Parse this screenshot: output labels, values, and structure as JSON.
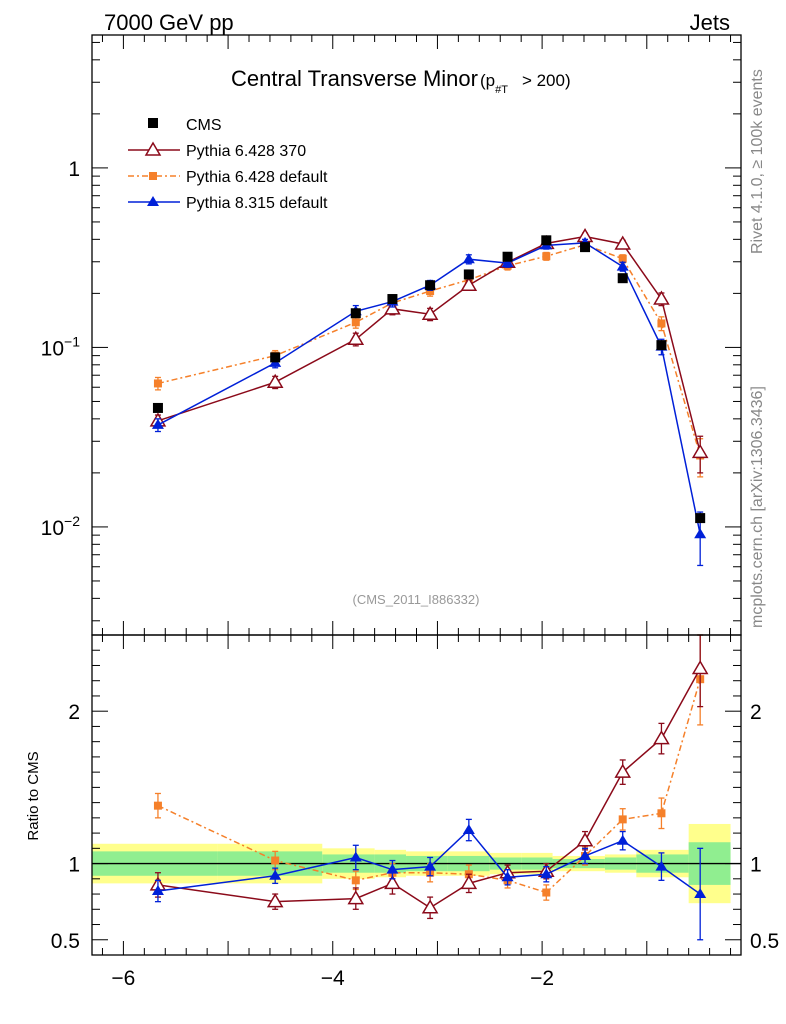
{
  "header": {
    "energy_label": "7000 GeV pp",
    "category_label": "Jets"
  },
  "side_labels": {
    "rivet": "Rivet 4.1.0, ≥ 100k events",
    "source": "mcplots.cern.ch [arXiv:1306.3436]"
  },
  "colors": {
    "cms": "#000000",
    "pythia6_370": "#8b0a1a",
    "pythia6_default": "#f5802a",
    "pythia8_default": "#0020d8",
    "band_inner": "#90ee90",
    "band_outer": "#ffff8c"
  },
  "chart_data": [
    {
      "type": "line",
      "panel": "main",
      "title": "Central Transverse Minor",
      "title_suffix": "(p",
      "title_sub": "#T",
      "title_cut": "> 200)",
      "xlabel": "",
      "ylabel": "",
      "yscale": "log",
      "xlim": [
        -6.3,
        -0.1
      ],
      "ylim": [
        0.0025,
        5.5
      ],
      "yticks": [
        {
          "value": 0.01,
          "base": "10",
          "exp": "−2"
        },
        {
          "value": 0.1,
          "base": "10",
          "exp": "−1"
        },
        {
          "value": 1,
          "base": "1",
          "exp": ""
        }
      ],
      "watermark": "(CMS_2011_I886332)",
      "legend_position": "top-left",
      "legend": [
        {
          "key": "cms",
          "label": "CMS"
        },
        {
          "key": "p6_370",
          "label": "Pythia 6.428 370"
        },
        {
          "key": "p6_def",
          "label": "Pythia 6.428 default"
        },
        {
          "key": "p8_def",
          "label": "Pythia 8.315 default"
        }
      ],
      "bin_edges": [
        -6.3,
        -5.1,
        -4.1,
        -3.6,
        -3.3,
        -2.9,
        -2.5,
        -2.2,
        -1.9,
        -1.4,
        -1.1,
        -0.6,
        -0.2
      ],
      "x": [
        -5.67,
        -4.55,
        -3.78,
        -3.43,
        -3.07,
        -2.7,
        -2.33,
        -1.96,
        -1.59,
        -1.23,
        -0.86,
        -0.49
      ],
      "series": [
        {
          "key": "cms",
          "name": "CMS",
          "values": [
            0.046,
            0.088,
            0.155,
            0.186,
            0.222,
            0.255,
            0.32,
            0.395,
            0.362,
            0.243,
            0.103,
            0.0112
          ],
          "errors": [
            0,
            0,
            0,
            0,
            0,
            0,
            0,
            0,
            0,
            0,
            0,
            0
          ]
        },
        {
          "key": "p6_370",
          "name": "Pythia 6.428 370",
          "values": [
            0.039,
            0.064,
            0.111,
            0.164,
            0.153,
            0.222,
            0.298,
            0.38,
            0.415,
            0.377,
            0.186,
            0.026
          ],
          "errors": [
            0.003,
            0.005,
            0.009,
            0.012,
            0.012,
            0.014,
            0.015,
            0.017,
            0.018,
            0.018,
            0.015,
            0.006
          ]
        },
        {
          "key": "p6_def",
          "name": "Pythia 6.428 default",
          "values": [
            0.063,
            0.09,
            0.138,
            0.177,
            0.206,
            0.238,
            0.285,
            0.322,
            0.373,
            0.312,
            0.136,
            0.025
          ],
          "errors": [
            0.005,
            0.006,
            0.01,
            0.012,
            0.013,
            0.014,
            0.015,
            0.016,
            0.017,
            0.016,
            0.012,
            0.006
          ]
        },
        {
          "key": "p8_def",
          "name": "Pythia 8.315 default",
          "values": [
            0.037,
            0.082,
            0.159,
            0.18,
            0.222,
            0.31,
            0.295,
            0.37,
            0.382,
            0.282,
            0.101,
            0.0091
          ],
          "errors": [
            0.003,
            0.005,
            0.012,
            0.012,
            0.014,
            0.018,
            0.015,
            0.017,
            0.018,
            0.016,
            0.01,
            0.003
          ]
        }
      ]
    },
    {
      "type": "line",
      "panel": "ratio",
      "ylabel": "Ratio to CMS",
      "xlabel": "",
      "xlim": [
        -6.3,
        -0.1
      ],
      "ylim": [
        0.4,
        2.5
      ],
      "xticks": [
        {
          "value": -6,
          "label": "−6"
        },
        {
          "value": -4,
          "label": "−4"
        },
        {
          "value": -2,
          "label": "−2"
        }
      ],
      "yticks": [
        {
          "value": 0.5,
          "label": "0.5"
        },
        {
          "value": 1,
          "label": "1"
        },
        {
          "value": 2,
          "label": "2"
        }
      ],
      "band_inner": [
        0.08,
        0.08,
        0.06,
        0.06,
        0.05,
        0.05,
        0.04,
        0.04,
        0.03,
        0.04,
        0.06,
        0.14
      ],
      "band_outer": [
        0.13,
        0.13,
        0.1,
        0.09,
        0.08,
        0.08,
        0.07,
        0.07,
        0.05,
        0.06,
        0.09,
        0.26
      ],
      "series": [
        {
          "key": "p6_370",
          "name": "Pythia 6.428 370",
          "values": [
            0.86,
            0.75,
            0.77,
            0.87,
            0.71,
            0.87,
            0.94,
            0.95,
            1.15,
            1.6,
            1.82,
            2.28
          ],
          "errors": [
            0.08,
            0.05,
            0.07,
            0.07,
            0.07,
            0.06,
            0.05,
            0.05,
            0.06,
            0.08,
            0.1,
            0.25
          ]
        },
        {
          "key": "p6_def",
          "name": "Pythia 6.428 default",
          "values": [
            1.38,
            1.02,
            0.89,
            0.94,
            0.94,
            0.93,
            0.89,
            0.81,
            1.05,
            1.29,
            1.33,
            2.21
          ],
          "errors": [
            0.08,
            0.06,
            0.06,
            0.06,
            0.06,
            0.06,
            0.05,
            0.05,
            0.06,
            0.07,
            0.1,
            0.3
          ]
        },
        {
          "key": "p8_def",
          "name": "Pythia 8.315 default",
          "values": [
            0.82,
            0.92,
            1.04,
            0.96,
            0.98,
            1.22,
            0.91,
            0.93,
            1.05,
            1.15,
            0.98,
            0.8
          ],
          "errors": [
            0.07,
            0.05,
            0.08,
            0.06,
            0.06,
            0.07,
            0.05,
            0.05,
            0.05,
            0.06,
            0.09,
            0.3
          ]
        }
      ]
    }
  ]
}
